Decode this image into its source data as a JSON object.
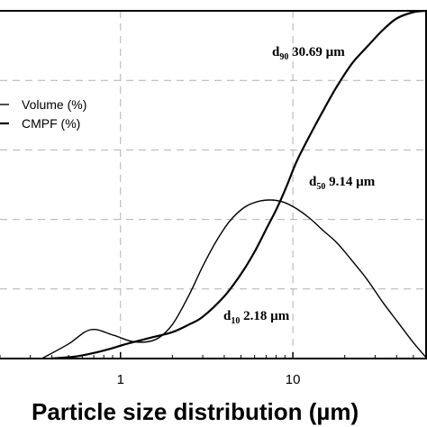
{
  "chart_data": {
    "type": "line",
    "xscale": "log",
    "xlim": [
      0.2,
      60
    ],
    "xticks": [
      {
        "value": 1,
        "label": "1"
      },
      {
        "value": 10,
        "label": "10"
      }
    ],
    "xlabel": "Particle size distribution (µm)",
    "grid": true,
    "legend": {
      "placement": "left",
      "entries": [
        "Volume (%)",
        "CMPF (%)"
      ]
    },
    "series": [
      {
        "name": "Volume (%)",
        "x": [
          0.35,
          0.5,
          0.67,
          0.9,
          1.2,
          1.6,
          2.0,
          2.5,
          3.0,
          3.6,
          4.3,
          5.2,
          6.2,
          7.4,
          8.8,
          10.5,
          12.5,
          15,
          18,
          22,
          27,
          33,
          40,
          50,
          60
        ],
        "y": [
          0.0,
          4.2,
          8.3,
          6.8,
          4.8,
          5.5,
          9.8,
          18.3,
          26.5,
          33.8,
          39.5,
          43.4,
          45.1,
          45.6,
          45.0,
          43.1,
          40.4,
          36.8,
          33.3,
          28.2,
          22.7,
          16.4,
          10.9,
          4.6,
          0.0
        ]
      },
      {
        "name": "CMPF (%)",
        "x": [
          0.4,
          0.55,
          0.7,
          0.9,
          1.1,
          1.5,
          2.0,
          2.5,
          3.0,
          4.0,
          5.0,
          6.0,
          7.0,
          8.0,
          9.14,
          10.5,
          12.5,
          15,
          18,
          22,
          27,
          33,
          40,
          50,
          60
        ],
        "y": [
          0.0,
          0.6,
          1.6,
          3.0,
          4.3,
          6.0,
          7.6,
          9.8,
          12.0,
          17.9,
          24.3,
          30.7,
          37.2,
          42.8,
          49.2,
          56.6,
          64.0,
          71.3,
          78.2,
          84.8,
          89.7,
          94.3,
          97.8,
          99.6,
          100.0
        ]
      }
    ],
    "ylim": [
      0,
      100
    ],
    "annotations": [
      {
        "prefix": "d",
        "sub": "90",
        "text": " 30.69  µm",
        "x": 30.69
      },
      {
        "prefix": "d",
        "sub": "50",
        "text": "  9.14    µm",
        "x": 9.14
      },
      {
        "prefix": "d",
        "sub": "10",
        "text": " 2.18   µm",
        "x": 2.18
      }
    ],
    "colors": {
      "lines": "#000000",
      "grid": "#b0b0b0",
      "axes": "#000000"
    }
  }
}
